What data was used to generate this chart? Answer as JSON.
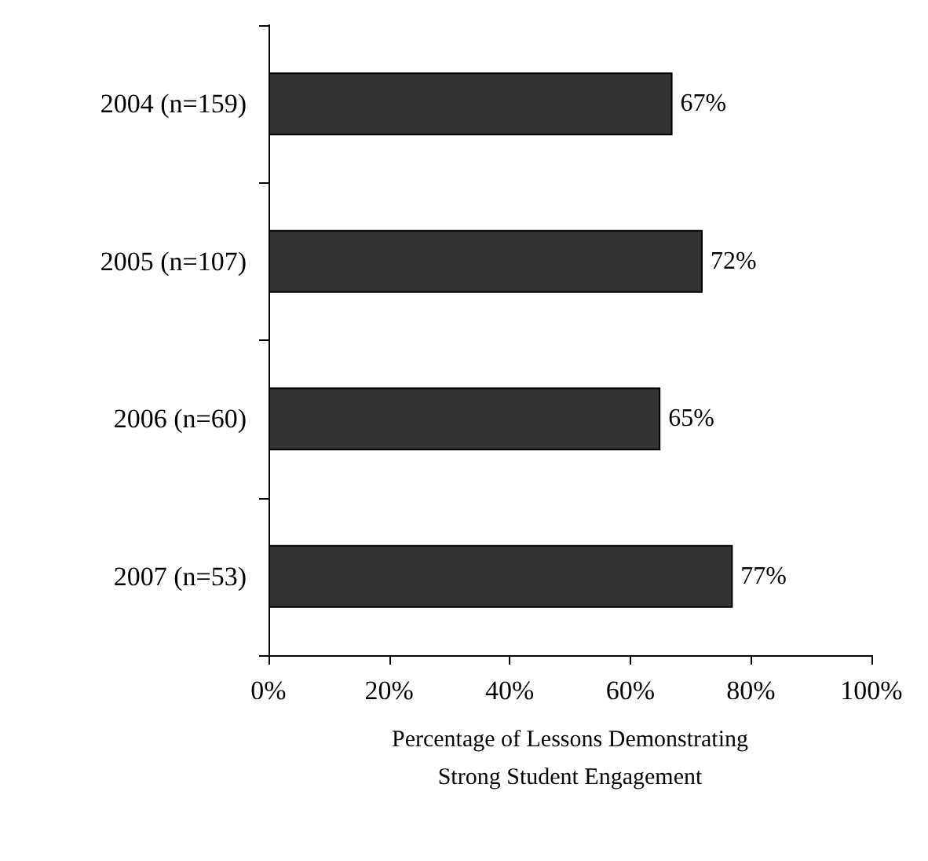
{
  "chart_data": {
    "type": "bar",
    "orientation": "horizontal",
    "categories": [
      "2004 (n=159)",
      "2005 (n=107)",
      "2006 (n=60)",
      "2007 (n=53)"
    ],
    "values": [
      67,
      72,
      65,
      77
    ],
    "value_labels": [
      "67%",
      "72%",
      "65%",
      "77%"
    ],
    "color": "#333333",
    "xlabel": "Percentage of Lessons Demonstrating\nStrong Student Engagement",
    "xlim": [
      0,
      100
    ],
    "xticks": [
      {
        "value": 0,
        "label": "0%"
      },
      {
        "value": 20,
        "label": "20%"
      },
      {
        "value": 40,
        "label": "40%"
      },
      {
        "value": 60,
        "label": "60%"
      },
      {
        "value": 80,
        "label": "80%"
      },
      {
        "value": 100,
        "label": "100%"
      }
    ],
    "grid": false
  }
}
